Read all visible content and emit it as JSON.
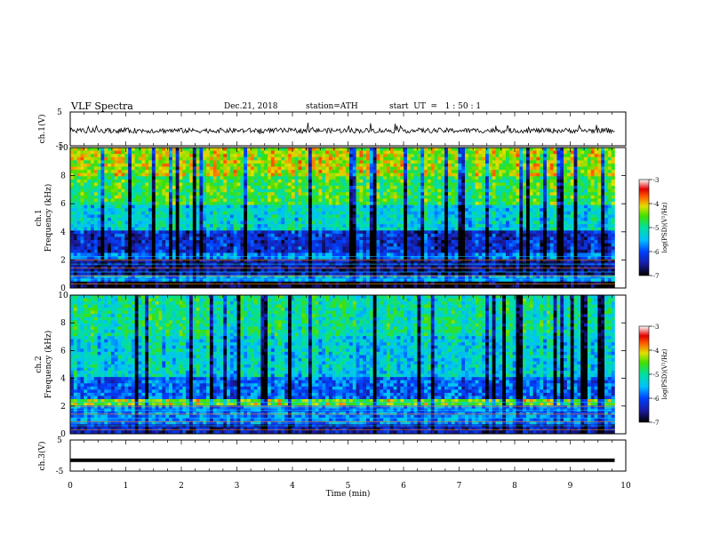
{
  "header": {
    "title": "VLF Spectra",
    "date": "Dec.21, 2018",
    "station": "station=ATH",
    "start_ut": "start  UT  =   1 : 50 : 1"
  },
  "chart_data": [
    {
      "type": "line",
      "panel": "ch.1 time series",
      "ylabel": "ch.1(V)",
      "yticks": [
        "5",
        "-5"
      ],
      "ylim": [
        -5,
        5
      ],
      "xlim": [
        0,
        10
      ],
      "series": [
        {
          "values_description_only": null
        }
      ],
      "approx_level_V": -0.5,
      "approx_noise_amplitude_V": 1.5,
      "x_extent_min": [
        0,
        9.8
      ]
    },
    {
      "type": "heatmap",
      "panel": "ch.1 spectrogram",
      "ylabel": "ch.1\nFrequency (kHz)",
      "ylabel_line1": "ch.1",
      "ylabel_line2": "Frequency (kHz)",
      "yticks": [
        "0",
        "2",
        "4",
        "6",
        "8",
        "10"
      ],
      "ylim": [
        0,
        10
      ],
      "xlim": [
        0,
        10
      ],
      "x_extent_min": [
        0,
        9.8
      ],
      "colorbar": {
        "label": "log(PSD)(V²/Hz)",
        "ticks": [
          "-3",
          "-4",
          "-5",
          "-6",
          "-7"
        ],
        "range": [
          -7,
          -3
        ]
      },
      "band_levels": [
        {
          "f_kHz": [
            0,
            0.5
          ],
          "log_psd": -6.9
        },
        {
          "f_kHz": [
            0.5,
            1.0
          ],
          "log_psd": -5.6
        },
        {
          "f_kHz": [
            1.0,
            2.0
          ],
          "log_psd": -6.5
        },
        {
          "f_kHz": [
            2.0,
            2.6
          ],
          "log_psd": -5.8
        },
        {
          "f_kHz": [
            2.6,
            4.2
          ],
          "log_psd": -6.3
        },
        {
          "f_kHz": [
            4.2,
            6.0
          ],
          "log_psd": -5.3
        },
        {
          "f_kHz": [
            6.0,
            8.0
          ],
          "log_psd": -4.7
        },
        {
          "f_kHz": [
            8.0,
            10.0
          ],
          "log_psd": -4.3
        }
      ]
    },
    {
      "type": "heatmap",
      "panel": "ch.2 spectrogram",
      "ylabel_line1": "ch.2",
      "ylabel_line2": "Frequency (kHz)",
      "yticks": [
        "0",
        "2",
        "4",
        "6",
        "8",
        "10"
      ],
      "ylim": [
        0,
        10
      ],
      "xlim": [
        0,
        10
      ],
      "x_extent_min": [
        0,
        9.8
      ],
      "colorbar": {
        "label": "log(PSD)(V²/Hz)",
        "ticks": [
          "-3",
          "-4",
          "-5",
          "-6",
          "-7"
        ],
        "range": [
          -7,
          -3
        ]
      },
      "band_levels": [
        {
          "f_kHz": [
            0,
            0.6
          ],
          "log_psd": -6.4
        },
        {
          "f_kHz": [
            0.6,
            2.0
          ],
          "log_psd": -5.7
        },
        {
          "f_kHz": [
            2.0,
            2.4
          ],
          "log_psd": -4.4
        },
        {
          "f_kHz": [
            2.4,
            4.0
          ],
          "log_psd": -5.9
        },
        {
          "f_kHz": [
            4.0,
            7.0
          ],
          "log_psd": -5.3
        },
        {
          "f_kHz": [
            7.0,
            10.0
          ],
          "log_psd": -5.0
        }
      ]
    },
    {
      "type": "line",
      "panel": "ch.3 time series",
      "ylabel": "ch.3(V)",
      "yticks": [
        "5",
        "-5"
      ],
      "ylim": [
        -5,
        5
      ],
      "xlim": [
        0,
        10
      ],
      "approx_level_V": -1.5,
      "x_extent_min": [
        0,
        9.8
      ],
      "xlabel": "Time  (min)",
      "xticks": [
        "0",
        "1",
        "2",
        "3",
        "4",
        "5",
        "6",
        "7",
        "8",
        "9",
        "10"
      ]
    }
  ]
}
